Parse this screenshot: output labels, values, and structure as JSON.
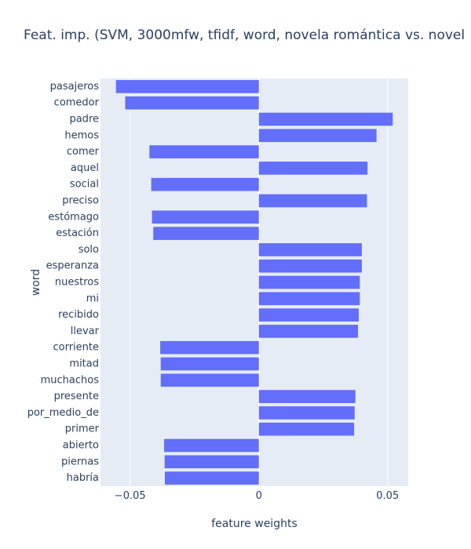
{
  "chart_data": {
    "type": "bar",
    "orientation": "horizontal",
    "title": "Feat. imp. (SVM, 3000mfw, tfidf, word, novela romántica vs. novel",
    "xlabel": "feature weights",
    "ylabel": "word",
    "xlim": [
      -0.0615,
      0.058
    ],
    "xticks": [
      -0.05,
      0,
      0.05
    ],
    "xtick_labels": [
      "−0.05",
      "0",
      "0.05"
    ],
    "grid": true,
    "legend": "none",
    "colors": {
      "bar": "#636efa",
      "plot_bg": "#e5ecf6",
      "grid": "#ffffff",
      "text": "#2a3f5f"
    },
    "categories": [
      "pasajeros",
      "comedor",
      "padre",
      "hemos",
      "comer",
      "aquel",
      "social",
      "preciso",
      "estómago",
      "estación",
      "solo",
      "esperanza",
      "nuestros",
      "mi",
      "recibido",
      "llevar",
      "corriente",
      "mitad",
      "muchachos",
      "presente",
      "por_medio_de",
      "primer",
      "abierto",
      "piernas",
      "habría"
    ],
    "values": [
      -0.0555,
      -0.0519,
      0.052,
      0.0457,
      -0.0425,
      0.0422,
      -0.0418,
      0.042,
      -0.0415,
      -0.041,
      0.04,
      0.04,
      0.0392,
      0.0392,
      0.0388,
      0.0385,
      -0.0383,
      -0.0381,
      -0.0381,
      0.0375,
      0.0372,
      0.037,
      -0.0368,
      -0.0366,
      -0.0365
    ]
  }
}
